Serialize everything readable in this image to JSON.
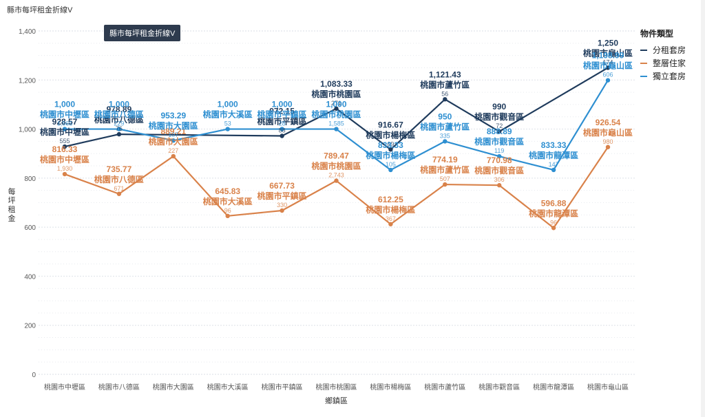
{
  "page_title": "縣市每坪租金折線V",
  "tooltip_text": "縣市每坪租金折線V",
  "colors": {
    "grid": "#e6e9ee",
    "axis_text": "#555555"
  },
  "chart_data": {
    "type": "line",
    "title": "縣市每坪租金折線V",
    "xlabel": "鄉鎮區",
    "ylabel": "每坪租金",
    "ylim": [
      0,
      1400
    ],
    "yticks": [
      0,
      200,
      400,
      600,
      800,
      1000,
      1200,
      1400
    ],
    "ytick_labels": [
      "0",
      "200",
      "400",
      "600",
      "800",
      "1,000",
      "1,200",
      "1,400"
    ],
    "grid": true,
    "legend_title": "物件類型",
    "legend_position": "top-right",
    "categories": [
      "桃園市中壢區",
      "桃園市八德區",
      "桃園市大園區",
      "桃園市大溪區",
      "桃園市平鎮區",
      "桃園市桃園區",
      "桃園市楊梅區",
      "桃園市蘆竹區",
      "桃園市觀音區",
      "桃園市龍潭區",
      "桃園市龜山區"
    ],
    "series": [
      {
        "name": "分租套房",
        "color": "#1f3b5c",
        "values": [
          928.57,
          978.89,
          null,
          null,
          972.15,
          1083.33,
          916.67,
          1121.43,
          990,
          null,
          1250
        ],
        "value_labels": [
          "928.57",
          "978.89",
          null,
          null,
          "972.15",
          "1,083.33",
          "916.67",
          "1,121.43",
          "990",
          null,
          "1,250"
        ],
        "counts": [
          "555",
          "76",
          null,
          null,
          "88",
          "271",
          "69",
          "56",
          "72",
          null,
          "174"
        ]
      },
      {
        "name": "整層住家",
        "color": "#d9824a",
        "values": [
          816.33,
          735.77,
          889.21,
          645.83,
          667.73,
          789.47,
          612.25,
          774.19,
          770.98,
          596.88,
          926.54
        ],
        "value_labels": [
          "816.33",
          "735.77",
          "889.21",
          "645.83",
          "667.73",
          "789.47",
          "612.25",
          "774.19",
          "770.98",
          "596.88",
          "926.54"
        ],
        "counts": [
          "1,930",
          "671",
          "227",
          "96",
          "330",
          "2,743",
          "367",
          "507",
          "306",
          "96",
          "980"
        ]
      },
      {
        "name": "獨立套房",
        "color": "#2e8fd1",
        "values": [
          1000,
          1000,
          953.29,
          1000,
          1000,
          1000,
          833.33,
          950,
          888.89,
          833.33,
          1198.99
        ],
        "value_labels": [
          "1,000",
          "1,000",
          "953.29",
          "1,000",
          "1,000",
          "1,000",
          "833.33",
          "950",
          "888.89",
          "833.33",
          "1,198.99"
        ],
        "counts": [
          "1,565",
          "229",
          "107",
          "53",
          "28",
          "1,585",
          "105",
          "335",
          "119",
          "147",
          "606"
        ]
      }
    ]
  }
}
